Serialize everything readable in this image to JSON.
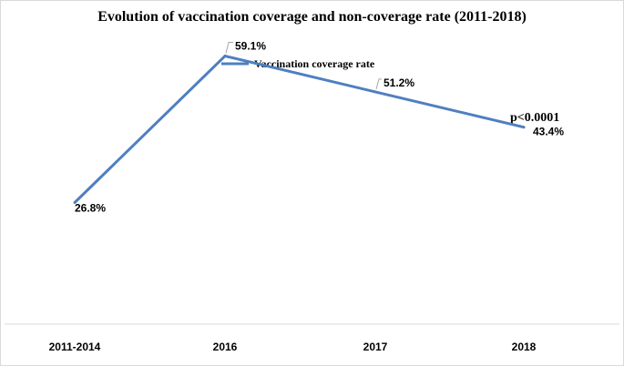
{
  "chart_data": {
    "type": "line",
    "title": "Evolution of vaccination coverage and non-coverage rate (2011-2018)",
    "categories": [
      "2011-2014",
      "2016",
      "2017",
      "2018"
    ],
    "series": [
      {
        "name": "Vaccination coverage rate",
        "values": [
          26.8,
          59.1,
          51.2,
          43.4
        ],
        "labels": [
          "26.8%",
          "59.1%",
          "51.2%",
          "43.4%"
        ],
        "color": "#4f7fc0"
      }
    ],
    "annotation": "p<0.0001",
    "ylim": [
      0,
      70
    ],
    "xlabel": "",
    "ylabel": "",
    "grid": false,
    "legend": "top-center"
  }
}
